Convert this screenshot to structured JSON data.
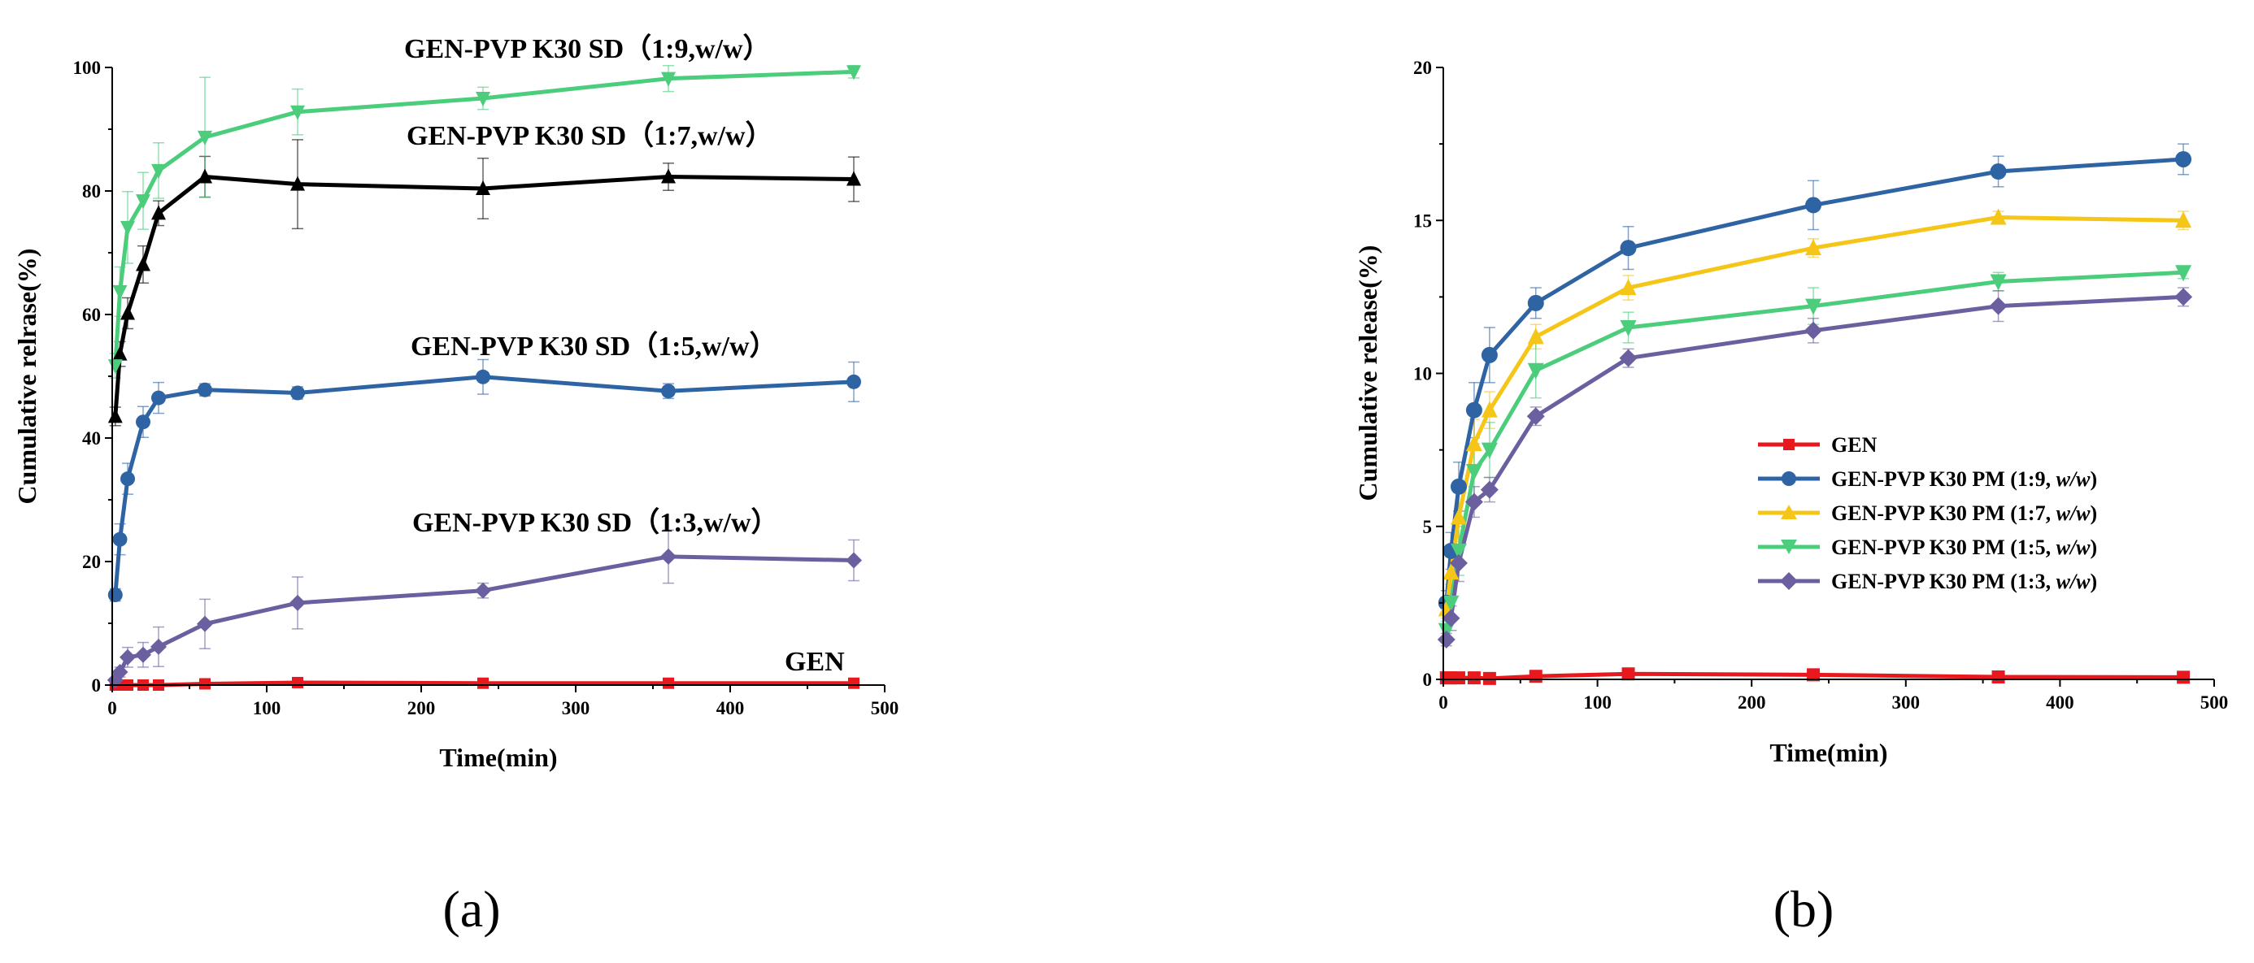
{
  "panels": [
    {
      "chart_data": {
        "type": "line",
        "panel_label": "(a)",
        "xlabel": "Time(min)",
        "ylabel": "Cumulative relrase(%)",
        "xlim": [
          0,
          500
        ],
        "ylim": [
          0,
          100
        ],
        "xticks": [
          0,
          100,
          200,
          300,
          400,
          500
        ],
        "yticks": [
          0,
          20,
          40,
          60,
          80,
          100
        ],
        "legend": "none (inline series labels)",
        "series": [
          {
            "name": "GEN",
            "color": "#e8191e",
            "marker": "square",
            "label": "GEN",
            "x": [
              2,
              5,
              10,
              20,
              30,
              60,
              120,
              240,
              360,
              480
            ],
            "y": [
              0,
              0,
              0,
              0,
              0,
              0.2,
              0.4,
              0.3,
              0.3,
              0.3
            ],
            "err": [
              0,
              0,
              0,
              0,
              0,
              0,
              0,
              0,
              0,
              0
            ]
          },
          {
            "name": "GEN-PVP K30 SD (1:3,w/w)",
            "color": "#6b5fa0",
            "marker": "diamond",
            "label": "GEN-PVP K30 SD（1:3,w/w）",
            "x": [
              2,
              5,
              10,
              20,
              30,
              60,
              120,
              240,
              360,
              480
            ],
            "y": [
              0.8,
              2.1,
              4.5,
              4.9,
              6.2,
              9.9,
              13.3,
              15.3,
              20.8,
              20.2
            ],
            "err": [
              0.3,
              0.8,
              1.6,
              2.0,
              3.2,
              4.0,
              4.2,
              1.2,
              4.3,
              3.3
            ]
          },
          {
            "name": "GEN-PVP K30 SD (1:5,w/w)",
            "color": "#2e64a4",
            "marker": "circle",
            "label": "GEN-PVP K30 SD（1:5,w/w）",
            "x": [
              2,
              5,
              10,
              20,
              30,
              60,
              120,
              240,
              360,
              480
            ],
            "y": [
              14.6,
              23.6,
              33.4,
              42.6,
              46.5,
              47.8,
              47.3,
              49.9,
              47.6,
              49.1
            ],
            "err": [
              1.0,
              2.5,
              2.5,
              2.5,
              2.5,
              1.0,
              1.0,
              2.8,
              1.2,
              3.2
            ]
          },
          {
            "name": "GEN-PVP K30 SD (1:7,w/w)",
            "color": "#000000",
            "marker": "triangle-up",
            "label": "GEN-PVP K30 SD（1:7,w/w）",
            "x": [
              2,
              5,
              10,
              20,
              30,
              60,
              120,
              240,
              360,
              480
            ],
            "y": [
              43.5,
              53.6,
              60.2,
              68.1,
              76.4,
              82.3,
              81.1,
              80.4,
              82.3,
              81.9
            ],
            "err": [
              1.5,
              2.0,
              2.5,
              3.0,
              2.0,
              3.3,
              7.2,
              4.9,
              2.2,
              3.6
            ]
          },
          {
            "name": "GEN-PVP K30 SD (1:9,w/w)",
            "color": "#4bcd7c",
            "marker": "triangle-down",
            "label": "GEN-PVP K30 SD（1:9,w/w）",
            "x": [
              2,
              5,
              10,
              20,
              30,
              60,
              120,
              240,
              360,
              480
            ],
            "y": [
              51.7,
              63.7,
              74.1,
              78.4,
              83.3,
              88.7,
              92.8,
              95.0,
              98.2,
              99.3
            ],
            "err": [
              2.0,
              4.0,
              5.8,
              4.6,
              4.5,
              9.7,
              3.7,
              1.8,
              2.1,
              1.0
            ]
          }
        ]
      }
    },
    {
      "chart_data": {
        "type": "line",
        "panel_label": "(b)",
        "xlabel": "Time(min)",
        "ylabel": "Cumulative release(%)",
        "xlim": [
          0,
          500
        ],
        "ylim": [
          0,
          20
        ],
        "xticks": [
          0,
          100,
          200,
          300,
          400,
          500
        ],
        "yticks": [
          0,
          5,
          10,
          15,
          20
        ],
        "legend": "center-right",
        "series": [
          {
            "name": "GEN",
            "color": "#e8191e",
            "marker": "square",
            "legend_main": "GEN",
            "legend_ratio": "",
            "legend_italic": "",
            "legend_close": "",
            "x": [
              2,
              5,
              10,
              20,
              30,
              60,
              120,
              240,
              360,
              480
            ],
            "y": [
              0.05,
              0.05,
              0.05,
              0.05,
              0.03,
              0.1,
              0.18,
              0.15,
              0.08,
              0.07
            ],
            "err": [
              0,
              0,
              0,
              0,
              0,
              0,
              0,
              0,
              0,
              0
            ]
          },
          {
            "name": "GEN-PVP K30 PM (1:9, w/w)",
            "color": "#2e64a4",
            "marker": "circle",
            "legend_main": "GEN-PVP K30 PM (1:9, ",
            "legend_italic": "w/w",
            "legend_close": ")",
            "x": [
              2,
              5,
              10,
              20,
              30,
              60,
              120,
              240,
              360,
              480
            ],
            "y": [
              2.5,
              4.2,
              6.3,
              8.8,
              10.6,
              12.3,
              14.1,
              15.5,
              16.6,
              17.0
            ],
            "err": [
              0.4,
              0.6,
              0.8,
              0.9,
              0.9,
              0.5,
              0.7,
              0.8,
              0.5,
              0.5
            ]
          },
          {
            "name": "GEN-PVP K30 PM (1:7, w/w)",
            "color": "#f5c518",
            "marker": "triangle-up",
            "legend_main": "GEN-PVP K30 PM (1:7, ",
            "legend_italic": "w/w",
            "legend_close": ")",
            "x": [
              2,
              5,
              10,
              20,
              30,
              60,
              120,
              240,
              360,
              480
            ],
            "y": [
              2.3,
              3.5,
              5.3,
              7.7,
              8.8,
              11.2,
              12.8,
              14.1,
              15.1,
              15.0
            ],
            "err": [
              0.3,
              0.5,
              0.8,
              0.8,
              0.6,
              0.4,
              0.4,
              0.3,
              0.2,
              0.3
            ]
          },
          {
            "name": "GEN-PVP K30 PM (1:5, w/w)",
            "color": "#4bcd7c",
            "marker": "triangle-down",
            "legend_main": "GEN-PVP K30 PM (1:5, ",
            "legend_italic": "w/w",
            "legend_close": ")",
            "x": [
              2,
              5,
              10,
              20,
              30,
              60,
              120,
              240,
              360,
              480
            ],
            "y": [
              1.6,
              2.5,
              4.2,
              6.8,
              7.5,
              10.1,
              11.5,
              12.2,
              13.0,
              13.3
            ],
            "err": [
              0.3,
              0.6,
              0.8,
              0.9,
              0.9,
              0.9,
              0.5,
              0.6,
              0.3,
              0.2
            ]
          },
          {
            "name": "GEN-PVP K30 PM (1:3, w/w)",
            "color": "#6b5fa0",
            "marker": "diamond",
            "legend_main": "GEN-PVP K30 PM (1:3, ",
            "legend_italic": "w/w",
            "legend_close": ")",
            "x": [
              2,
              5,
              10,
              20,
              30,
              60,
              120,
              240,
              360,
              480
            ],
            "y": [
              1.3,
              2.0,
              3.8,
              5.8,
              6.2,
              8.6,
              10.5,
              11.4,
              12.2,
              12.5
            ],
            "err": [
              0.2,
              0.4,
              0.6,
              0.5,
              0.4,
              0.3,
              0.3,
              0.4,
              0.5,
              0.3
            ]
          }
        ]
      }
    }
  ]
}
